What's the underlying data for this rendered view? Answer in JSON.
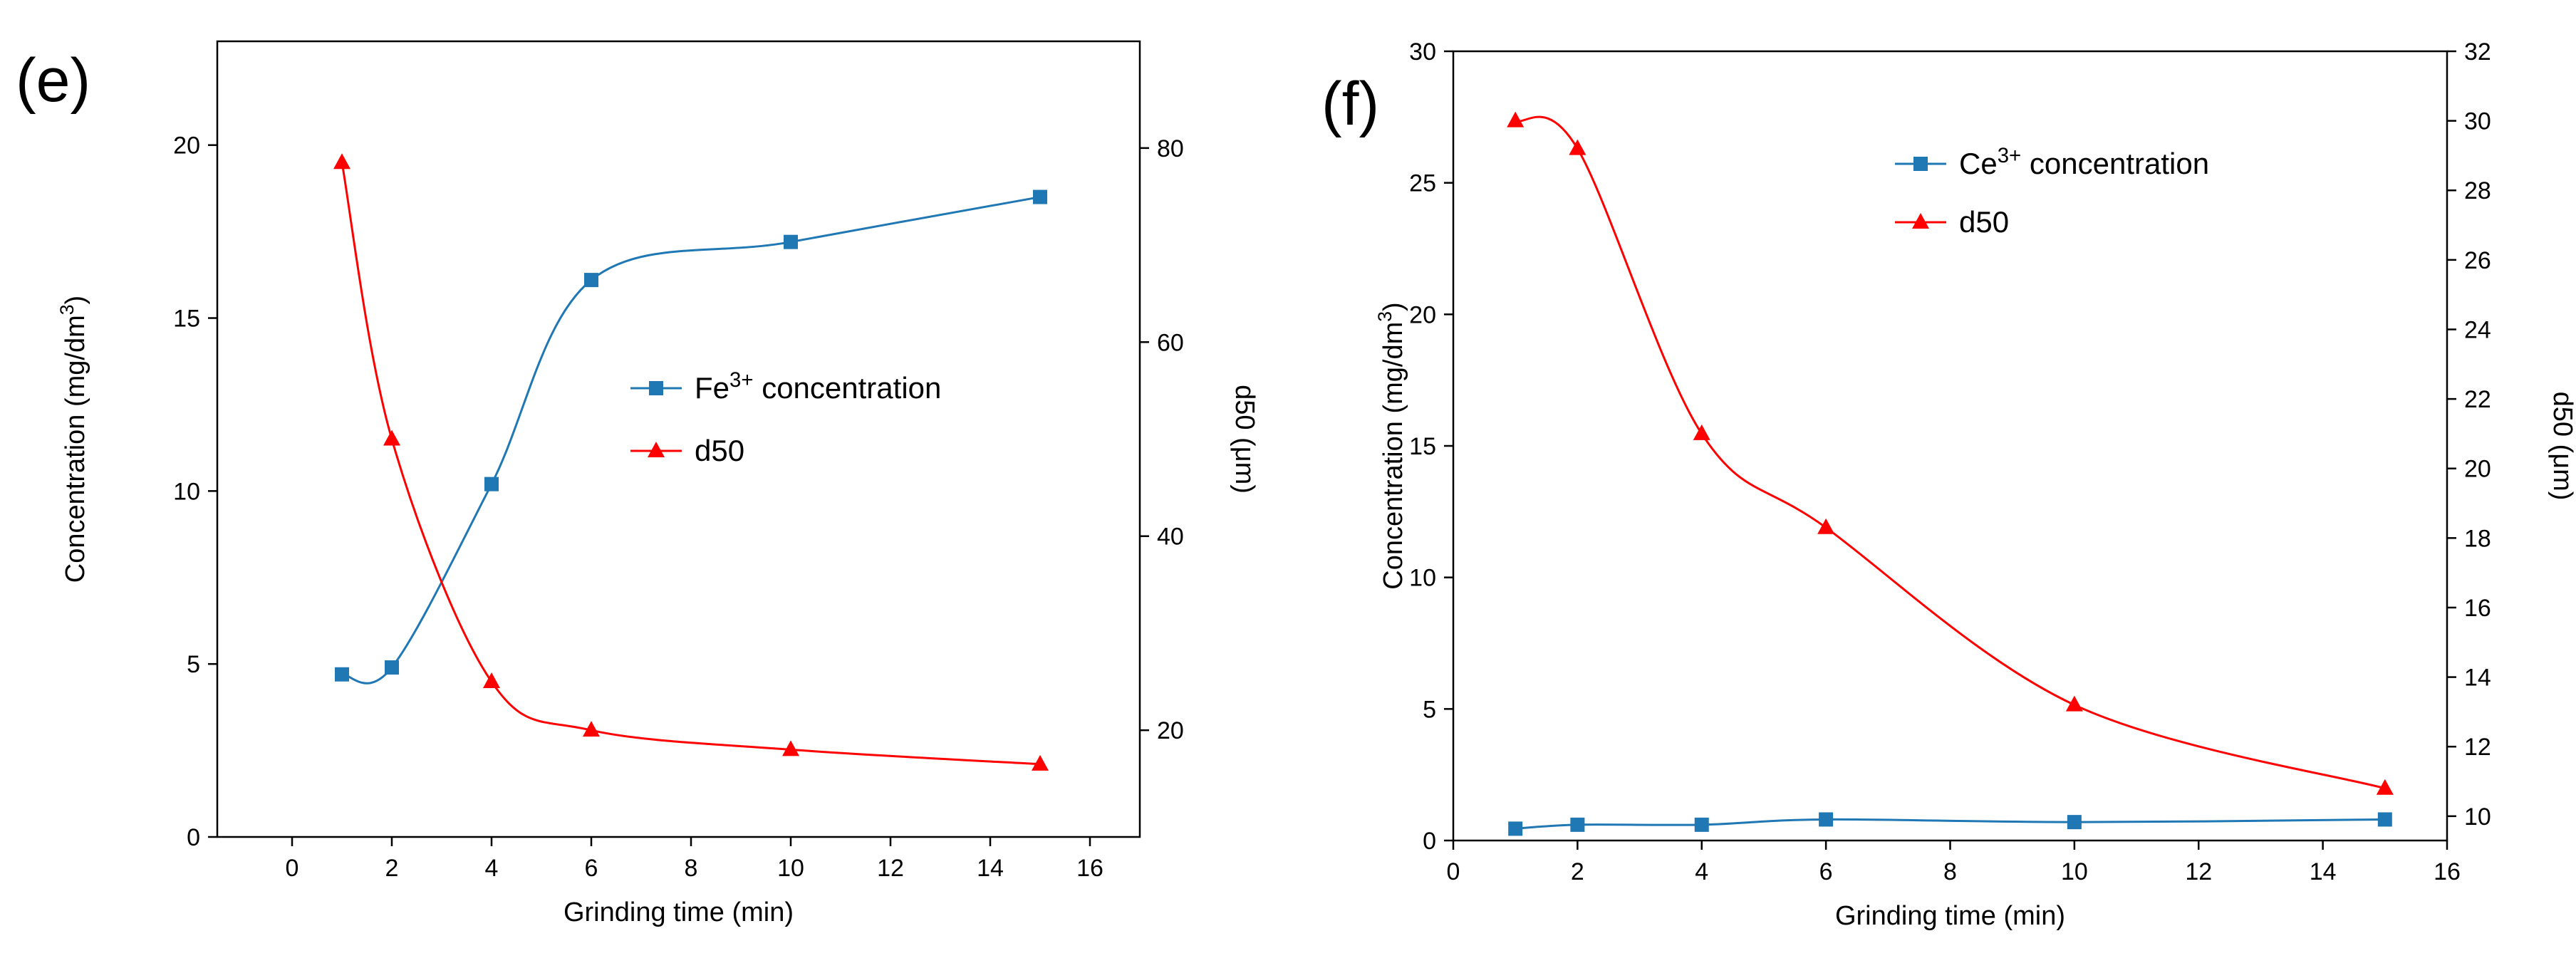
{
  "figure": {
    "panel_labels": [
      "(e)",
      "(f)"
    ]
  },
  "chart_data": [
    {
      "panel_label": "(e)",
      "type": "line",
      "title": "",
      "xlabel": "Grinding time (min)",
      "ylabel": "Concentration (mg/dm³)",
      "ylabel_parts": {
        "base": "Concentration (mg/dm",
        "sup": "3",
        "tail": ")"
      },
      "y2label": "d50 (μm)",
      "xlim": [
        -1.5,
        17
      ],
      "ylim": [
        0,
        23
      ],
      "y2lim": [
        9,
        91
      ],
      "x_ticks": [
        0,
        2,
        4,
        6,
        8,
        10,
        12,
        14,
        16
      ],
      "y_ticks": [
        0,
        5,
        10,
        15,
        20
      ],
      "y2_ticks": [
        20,
        40,
        60,
        80
      ],
      "grid": false,
      "legend_position": "center-right",
      "series": [
        {
          "name": "Fe³⁺ concentration",
          "name_parts": {
            "base": "Fe",
            "sup": "3+",
            "tail": " concentration"
          },
          "axis": "left",
          "color": "#1f77b4",
          "marker": "square",
          "x": [
            1,
            2,
            4,
            6,
            10,
            15
          ],
          "y": [
            4.7,
            4.9,
            10.2,
            16.1,
            17.2,
            18.5
          ]
        },
        {
          "name": "d50",
          "axis": "right",
          "color": "#ff0000",
          "marker": "triangle",
          "x": [
            1,
            2,
            4,
            6,
            10,
            15
          ],
          "y": [
            78.5,
            50,
            25,
            20,
            18,
            16.5
          ]
        }
      ]
    },
    {
      "panel_label": "(f)",
      "type": "line",
      "title": "",
      "xlabel": "Grinding time (min)",
      "ylabel": "Concentration (mg/dm³)",
      "ylabel_parts": {
        "base": "Concentration (mg/dm",
        "sup": "3",
        "tail": ")"
      },
      "y2label": "d50 (μm)",
      "xlim": [
        0,
        16
      ],
      "ylim": [
        0,
        30
      ],
      "y2lim": [
        9.3,
        32
      ],
      "x_ticks": [
        0,
        2,
        4,
        6,
        8,
        10,
        12,
        14,
        16
      ],
      "y_ticks": [
        0,
        5,
        10,
        15,
        20,
        25,
        30
      ],
      "y2_ticks": [
        10,
        12,
        14,
        16,
        18,
        20,
        22,
        24,
        26,
        28,
        30,
        32
      ],
      "grid": false,
      "legend_position": "top-right",
      "series": [
        {
          "name": "Ce³⁺ concentration",
          "name_parts": {
            "base": "Ce",
            "sup": "3+",
            "tail": " concentration"
          },
          "axis": "left",
          "color": "#1f77b4",
          "marker": "square",
          "x": [
            1,
            2,
            4,
            6,
            10,
            15
          ],
          "y": [
            0.45,
            0.6,
            0.6,
            0.8,
            0.7,
            0.8
          ]
        },
        {
          "name": "d50",
          "axis": "right",
          "color": "#ff0000",
          "marker": "triangle",
          "x": [
            1,
            2,
            4,
            6,
            10,
            15
          ],
          "y": [
            30,
            29.2,
            21,
            18.3,
            13.2,
            10.8
          ]
        }
      ]
    }
  ]
}
